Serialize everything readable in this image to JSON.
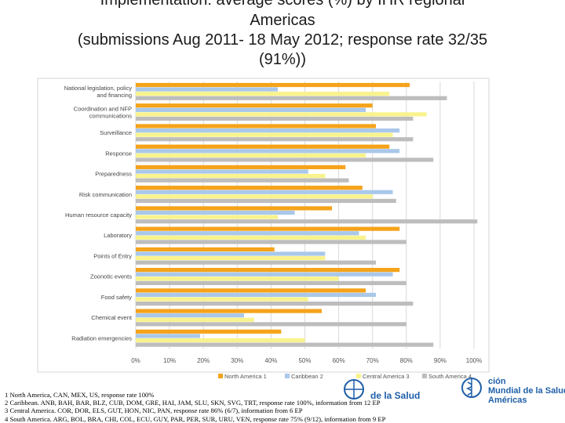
{
  "title": {
    "line1": "Implementation: average scores (%) by IHR regional",
    "line2": "Americas",
    "line3": "(submissions Aug 2011- 18 May 2012; response rate 32/35",
    "line4": "(91%))"
  },
  "colors": {
    "north_america": "#f5a31a",
    "caribbean": "#a9c8ea",
    "central_america": "#f8f38c",
    "south_america": "#bdbdbd",
    "grid": "#d9d9d9"
  },
  "chart_data": {
    "type": "bar",
    "orientation": "horizontal",
    "categories": [
      "National legislation, policy and financing",
      "Coordination and NFP communications",
      "Surveillance",
      "Response",
      "Preparedness",
      "Risk communication",
      "Human resource capacity",
      "Laboratory",
      "Points of Entry",
      "Zoonotic events",
      "Food safety",
      "Chemical event",
      "Radiation emergencies"
    ],
    "series": [
      {
        "name": "North America 1",
        "values": [
          81,
          70,
          71,
          75,
          62,
          67,
          58,
          78,
          41,
          78,
          68,
          55,
          43
        ]
      },
      {
        "name": "Caribbean 2",
        "values": [
          42,
          68,
          78,
          78,
          51,
          76,
          47,
          66,
          56,
          76,
          71,
          32,
          19
        ]
      },
      {
        "name": "Central America 3",
        "values": [
          75,
          86,
          76,
          68,
          56,
          70,
          42,
          68,
          56,
          60,
          51,
          35,
          50
        ]
      },
      {
        "name": "South America 4",
        "values": [
          92,
          82,
          82,
          88,
          63,
          77,
          101,
          80,
          71,
          80,
          82,
          80,
          88
        ]
      }
    ],
    "xlim": [
      0,
      100
    ],
    "xticks": [
      "0%",
      "10%",
      "20%",
      "30%",
      "40%",
      "50%",
      "60%",
      "70%",
      "80%",
      "90%",
      "100%"
    ],
    "grid": true,
    "legend_position": "bottom"
  },
  "footnotes": [
    "1 North America, CAN, MEX, US, response rate 100%",
    "2 Caribbean. ANB, BAH, BAR, BLZ, CUB, DOM, GRE, HAI, JAM, SLU, SKN, SVG, TRT, response rate 100%, information from 12 EP",
    "3 Central America. COR, DOR, ELS, GUT, HON, NIC, PAN, response rate 86% (6/7), information from 6 EP",
    "4 South America. ARG, BOL, BRA, CHI, COL, ECU, GUY, PAR, PER, SUR, URU, VEN, response rate 75% (9/12), information from 9 EP"
  ],
  "logos": {
    "paho_name": "de la Salud",
    "who_name_line1": "ción",
    "who_name_line2": "Mundial de la Salud",
    "who_name_line3": "Américas"
  }
}
